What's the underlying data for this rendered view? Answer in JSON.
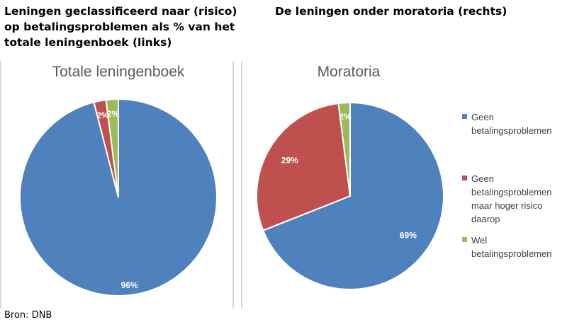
{
  "heading_left": "Leningen geclassificeerd naar (risico)\nop betalingsproblemen als % van het\ntotale leningenboek (links)",
  "heading_right": "De leningen onder moratoria (rechts)",
  "source": "Bron: DNB",
  "colors": {
    "blue": "#4f81bd",
    "red": "#c0504d",
    "green": "#9bbb59",
    "label": "#ffffff"
  },
  "chart_data": [
    {
      "type": "pie",
      "title": "Totale leningenboek",
      "slices": [
        {
          "name": "Geen betalingsproblemen",
          "value": 96,
          "label": "96%",
          "color": "#4f81bd"
        },
        {
          "name": "Geen betalingsproblemen maar hoger risico daarop",
          "value": 2,
          "label": "2%",
          "color": "#c0504d"
        },
        {
          "name": "Wel betalingsproblemen",
          "value": 2,
          "label": "2%",
          "color": "#9bbb59"
        }
      ]
    },
    {
      "type": "pie",
      "title": "Moratoria",
      "slices": [
        {
          "name": "Geen betalingsproblemen",
          "value": 69,
          "label": "69%",
          "color": "#4f81bd"
        },
        {
          "name": "Geen betalingsproblemen maar hoger risico daarop",
          "value": 29,
          "label": "29%",
          "color": "#c0504d"
        },
        {
          "name": "Wel betalingsproblemen",
          "value": 2,
          "label": "2%",
          "color": "#9bbb59"
        }
      ],
      "legend": [
        {
          "label": "Geen betalingsproblemen",
          "color": "#4f81bd"
        },
        {
          "label": "Geen betalingsproblemen maar hoger risico daarop",
          "color": "#c0504d"
        },
        {
          "label": "Wel betalingsproblemen",
          "color": "#9bbb59"
        }
      ],
      "legend_position": "right"
    }
  ]
}
